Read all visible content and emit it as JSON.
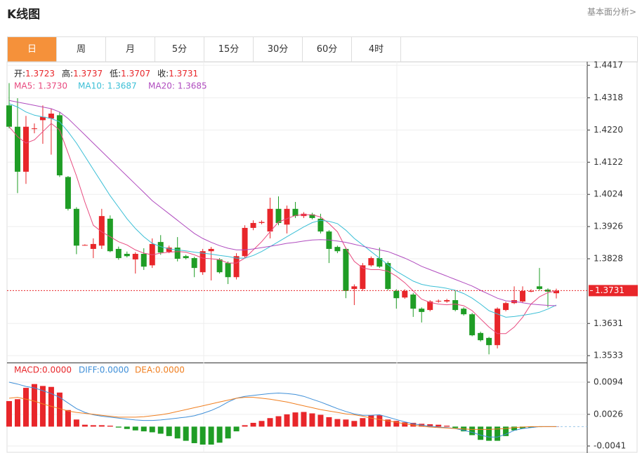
{
  "header": {
    "title": "K线图",
    "link": "基本面分析>"
  },
  "tabs": [
    "日",
    "周",
    "月",
    "5分",
    "15分",
    "30分",
    "60分",
    "4时"
  ],
  "active_tab": 0,
  "chart_data": [
    {
      "type": "candlestick",
      "ohlc_legend": [
        {
          "label": "开:",
          "value_text": "1.3723"
        },
        {
          "label": "高:",
          "value_text": "1.3737"
        },
        {
          "label": "低:",
          "value_text": "1.3707"
        },
        {
          "label": "收:",
          "value_text": "1.3731"
        }
      ],
      "up_color": "#e8262a",
      "down_color": "#1f9d25",
      "open": [
        1.4295,
        1.423,
        1.4093,
        1.4225,
        1.425,
        1.4255,
        1.4265,
        1.4077,
        1.398,
        1.387,
        1.3858,
        1.3868,
        1.395,
        1.3858,
        1.3843,
        1.3826,
        1.3843,
        1.3808,
        1.3879,
        1.3849,
        1.3862,
        1.3836,
        1.383,
        1.3787,
        1.3851,
        1.3826,
        1.3815,
        1.3772,
        1.3836,
        1.3922,
        1.3937,
        1.3911,
        1.398,
        1.3932,
        1.398,
        1.3958,
        1.3963,
        1.395,
        1.3911,
        1.3864,
        1.3858,
        1.3736,
        1.3736,
        1.3808,
        1.383,
        1.3815,
        1.373,
        1.371,
        1.3719,
        1.3676,
        1.3672,
        1.3698,
        1.3698,
        1.3702,
        1.3676,
        1.3659,
        1.3602,
        1.3587,
        1.3565,
        1.3672,
        1.3693,
        1.3698,
        1.373,
        1.3744,
        1.3734,
        1.3723
      ],
      "high": [
        1.4363,
        1.4317,
        1.4263,
        1.424,
        1.4295,
        1.4285,
        1.4274,
        1.408,
        1.3985,
        1.3872,
        1.389,
        1.398,
        1.396,
        1.3865,
        1.385,
        1.3848,
        1.386,
        1.389,
        1.39,
        1.3868,
        1.3894,
        1.384,
        1.3834,
        1.3858,
        1.3864,
        1.383,
        1.382,
        1.3845,
        1.393,
        1.3945,
        1.3945,
        1.4014,
        1.4018,
        1.399,
        1.4001,
        1.397,
        1.3968,
        1.3965,
        1.3915,
        1.3868,
        1.3862,
        1.375,
        1.3815,
        1.3835,
        1.3862,
        1.382,
        1.3735,
        1.3735,
        1.3724,
        1.368,
        1.3702,
        1.3704,
        1.3706,
        1.373,
        1.368,
        1.3663,
        1.3606,
        1.359,
        1.368,
        1.3697,
        1.3744,
        1.3744,
        1.3735,
        1.38,
        1.3738,
        1.3737
      ],
      "low": [
        1.4225,
        1.4028,
        1.4056,
        1.421,
        1.4178,
        1.4145,
        1.4077,
        1.3975,
        1.3842,
        1.3868,
        1.383,
        1.3858,
        1.3848,
        1.3825,
        1.3832,
        1.3783,
        1.3794,
        1.38,
        1.384,
        1.3845,
        1.382,
        1.3826,
        1.3772,
        1.3779,
        1.3762,
        1.3783,
        1.3751,
        1.3765,
        1.383,
        1.3915,
        1.3933,
        1.389,
        1.393,
        1.3905,
        1.3952,
        1.3952,
        1.3948,
        1.3905,
        1.3815,
        1.3845,
        1.3708,
        1.3687,
        1.373,
        1.3804,
        1.38,
        1.3732,
        1.3676,
        1.3706,
        1.3651,
        1.3634,
        1.3668,
        1.3694,
        1.3694,
        1.3668,
        1.3655,
        1.3592,
        1.3576,
        1.3537,
        1.3555,
        1.3668,
        1.369,
        1.3694,
        1.3726,
        1.3732,
        1.368,
        1.3707
      ],
      "close": [
        1.423,
        1.4093,
        1.423,
        1.4225,
        1.426,
        1.427,
        1.4082,
        1.398,
        1.3868,
        1.387,
        1.3873,
        1.3958,
        1.3851,
        1.383,
        1.3836,
        1.3843,
        1.3804,
        1.3873,
        1.3847,
        1.3862,
        1.3828,
        1.383,
        1.38,
        1.3851,
        1.3858,
        1.3787,
        1.3772,
        1.3836,
        1.3922,
        1.3937,
        1.394,
        1.398,
        1.3937,
        1.398,
        1.3958,
        1.3965,
        1.3952,
        1.3911,
        1.3858,
        1.3851,
        1.373,
        1.3744,
        1.3808,
        1.383,
        1.3804,
        1.3736,
        1.3708,
        1.373,
        1.3676,
        1.3666,
        1.3698,
        1.37,
        1.3702,
        1.3672,
        1.3659,
        1.3595,
        1.358,
        1.3565,
        1.3676,
        1.3693,
        1.3702,
        1.373,
        1.373,
        1.3736,
        1.3728,
        1.3731
      ],
      "series": [
        {
          "name": "MA5",
          "legend_text": "MA5: 1.3730",
          "color": "#e84a7f",
          "values": [
            1.423,
            1.42,
            1.418,
            1.419,
            1.4215,
            1.424,
            1.422,
            1.415,
            1.408,
            1.4,
            1.393,
            1.391,
            1.3895,
            1.388,
            1.387,
            1.3855,
            1.3845,
            1.384,
            1.3845,
            1.3848,
            1.385,
            1.3848,
            1.384,
            1.383,
            1.3828,
            1.3825,
            1.3815,
            1.3815,
            1.383,
            1.3855,
            1.388,
            1.391,
            1.394,
            1.395,
            1.396,
            1.3962,
            1.3962,
            1.3955,
            1.3935,
            1.391,
            1.386,
            1.382,
            1.38,
            1.3795,
            1.3795,
            1.379,
            1.3775,
            1.3755,
            1.373,
            1.3705,
            1.3695,
            1.369,
            1.3688,
            1.369,
            1.3685,
            1.367,
            1.3645,
            1.362,
            1.36,
            1.36,
            1.362,
            1.365,
            1.369,
            1.3712,
            1.3725,
            1.373
          ]
        },
        {
          "name": "MA10",
          "legend_text": "MA10: 1.3687",
          "color": "#3bbfd6",
          "values": [
            1.43,
            1.429,
            1.4275,
            1.4265,
            1.426,
            1.4255,
            1.4245,
            1.4215,
            1.418,
            1.414,
            1.41,
            1.406,
            1.402,
            1.3985,
            1.395,
            1.392,
            1.3895,
            1.3875,
            1.3865,
            1.3858,
            1.3855,
            1.3852,
            1.3848,
            1.3845,
            1.3842,
            1.3838,
            1.3835,
            1.383,
            1.383,
            1.3838,
            1.385,
            1.3865,
            1.388,
            1.3895,
            1.391,
            1.3925,
            1.3938,
            1.3945,
            1.3942,
            1.3935,
            1.3915,
            1.389,
            1.387,
            1.385,
            1.383,
            1.381,
            1.379,
            1.3775,
            1.376,
            1.375,
            1.3745,
            1.3742,
            1.3738,
            1.3732,
            1.3722,
            1.3708,
            1.369,
            1.367,
            1.366,
            1.365,
            1.3652,
            1.3656,
            1.366,
            1.3665,
            1.3675,
            1.3687
          ]
        },
        {
          "name": "MA20",
          "legend_text": "MA20: 1.3685",
          "color": "#b04cbf",
          "values": [
            1.431,
            1.4305,
            1.43,
            1.4295,
            1.429,
            1.4285,
            1.4275,
            1.4255,
            1.423,
            1.4205,
            1.418,
            1.4155,
            1.413,
            1.4105,
            1.408,
            1.4055,
            1.403,
            1.4005,
            1.3985,
            1.3965,
            1.3945,
            1.3925,
            1.3905,
            1.389,
            1.3878,
            1.3868,
            1.386,
            1.3855,
            1.3855,
            1.3858,
            1.3862,
            1.3866,
            1.387,
            1.3875,
            1.3878,
            1.3882,
            1.3885,
            1.3886,
            1.3885,
            1.3882,
            1.3878,
            1.3872,
            1.3866,
            1.386,
            1.3855,
            1.385,
            1.384,
            1.383,
            1.3818,
            1.3805,
            1.3795,
            1.3785,
            1.3775,
            1.3765,
            1.3755,
            1.3745,
            1.3732,
            1.372,
            1.3708,
            1.37,
            1.3698,
            1.3694,
            1.369,
            1.3688,
            1.3686,
            1.3685
          ]
        }
      ],
      "ylim": [
        1.3512,
        1.4428
      ],
      "yticks": [
        1.4417,
        1.4318,
        {
          "value": 1.422,
          "label": "1.4220"
        },
        1.4122,
        1.4024,
        1.3926,
        1.3828,
        1.3631,
        1.3533
      ],
      "last_price": {
        "value": 1.3731,
        "label": "1.3731"
      },
      "grid": true
    },
    {
      "type": "macd",
      "up_color": "#e8262a",
      "down_color": "#1f9d25",
      "series": [
        {
          "name": "MACD",
          "legend_text": "MACD:0.0000",
          "color": "#e8262a",
          "style": "bar",
          "values": [
            0.0054,
            0.0058,
            0.0082,
            0.009,
            0.0086,
            0.0084,
            0.0072,
            0.0035,
            0.0015,
            0.0004,
            0.0003,
            0.0003,
            0.0002,
            -0.0002,
            -0.0005,
            -0.0008,
            -0.001,
            -0.0012,
            -0.0015,
            -0.002,
            -0.0025,
            -0.003,
            -0.0035,
            -0.0038,
            -0.0038,
            -0.0034,
            -0.0025,
            -0.001,
            0.0003,
            0.0008,
            0.0012,
            0.0018,
            0.0022,
            0.0026,
            0.003,
            0.0031,
            0.0028,
            0.0025,
            0.002,
            0.0016,
            0.0015,
            0.0012,
            0.0018,
            0.0024,
            0.0024,
            0.0015,
            0.0012,
            0.0009,
            0.0008,
            0.0006,
            0.0005,
            0.0004,
            0.0002,
            -0.0003,
            -0.001,
            -0.0018,
            -0.0028,
            -0.003,
            -0.003,
            -0.002,
            -0.0008,
            -0.0004,
            -0.0002,
            -0.0001,
            0,
            0
          ]
        },
        {
          "name": "DIFF",
          "legend_text": "DIFF:0.0000",
          "color": "#3f8fd8",
          "style": "line",
          "values": [
            0.0094,
            0.009,
            0.0085,
            0.0082,
            0.0076,
            0.007,
            0.0062,
            0.005,
            0.0038,
            0.003,
            0.0025,
            0.0022,
            0.002,
            0.0018,
            0.0016,
            0.0014,
            0.0013,
            0.0013,
            0.0014,
            0.0016,
            0.0018,
            0.002,
            0.0023,
            0.0028,
            0.0034,
            0.0042,
            0.0052,
            0.006,
            0.0064,
            0.0066,
            0.0068,
            0.007,
            0.0071,
            0.007,
            0.0068,
            0.0064,
            0.0058,
            0.0052,
            0.0045,
            0.0038,
            0.0032,
            0.0027,
            0.0024,
            0.0024,
            0.0025,
            0.002,
            0.0015,
            0.001,
            0.0006,
            0.0003,
            0.0001,
            -0.0001,
            -0.0002,
            -0.0004,
            -0.0008,
            -0.0012,
            -0.0018,
            -0.0022,
            -0.0022,
            -0.0016,
            -0.0008,
            -0.0004,
            -0.0002,
            0,
            0,
            0
          ]
        },
        {
          "name": "DEA",
          "legend_text": "DEA:0.0000",
          "color": "#f07f20",
          "style": "line",
          "values": [
            0.006,
            0.0062,
            0.0058,
            0.0054,
            0.0048,
            0.0043,
            0.0038,
            0.0033,
            0.003,
            0.0028,
            0.0026,
            0.0024,
            0.0022,
            0.002,
            0.002,
            0.002,
            0.0021,
            0.0023,
            0.0025,
            0.0028,
            0.0032,
            0.0036,
            0.004,
            0.0044,
            0.0048,
            0.0052,
            0.0056,
            0.006,
            0.0062,
            0.0062,
            0.006,
            0.0058,
            0.0055,
            0.0052,
            0.0048,
            0.0044,
            0.004,
            0.0036,
            0.0033,
            0.003,
            0.0027,
            0.0025,
            0.0022,
            0.0018,
            0.0015,
            0.0012,
            0.0009,
            0.0006,
            0.0003,
            0.0001,
            -0.0001,
            -0.0002,
            -0.0003,
            -0.0004,
            -0.0005,
            -0.0006,
            -0.0006,
            -0.0006,
            -0.0005,
            -0.0004,
            -0.0002,
            -0.0001,
            0,
            0,
            0,
            0
          ]
        }
      ],
      "ylim": [
        -0.00558,
        0.01355
      ],
      "yticks": [
        0.0094,
        0.0026,
        -0.0041
      ],
      "grid": true
    }
  ]
}
